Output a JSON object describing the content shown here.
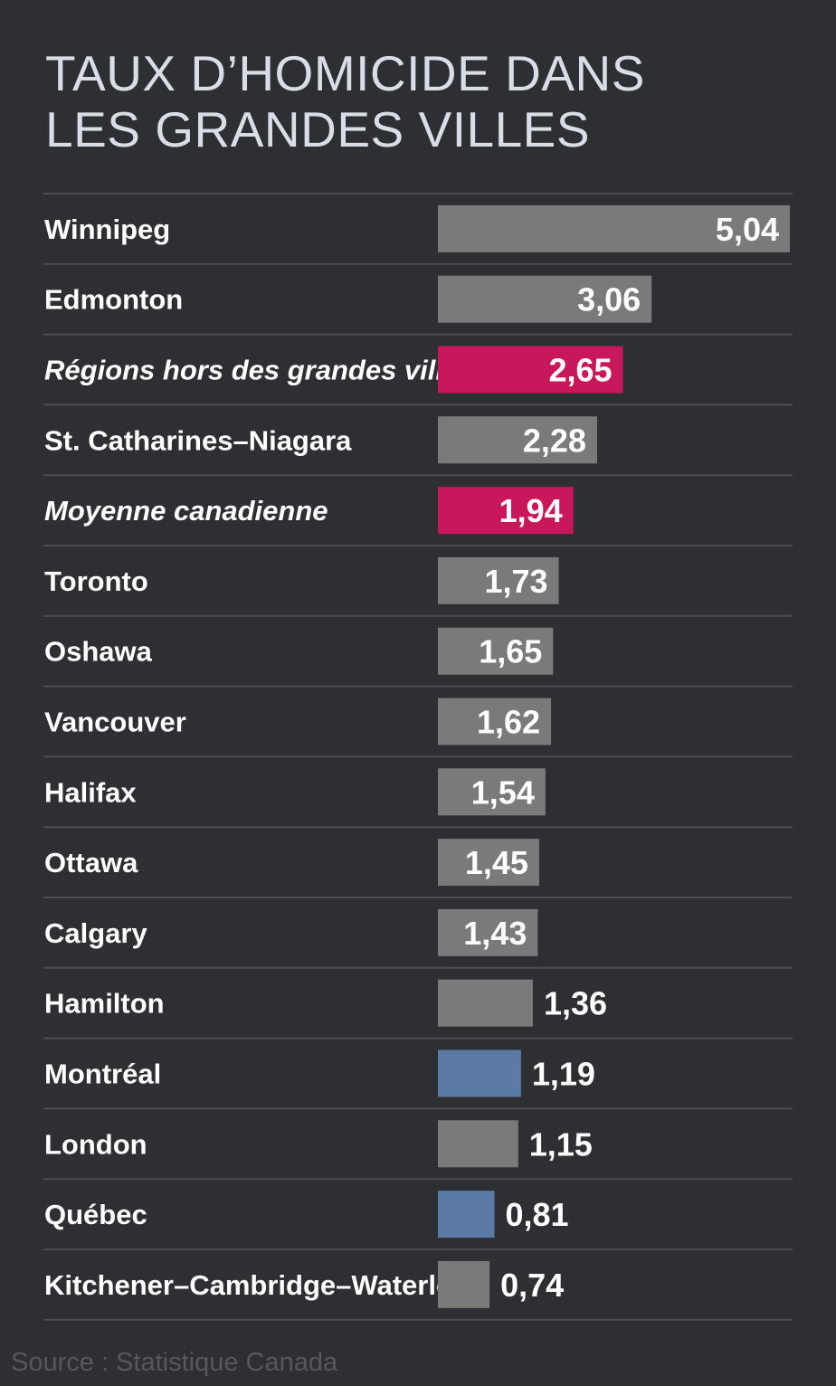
{
  "title_lines": [
    "TAUX D’HOMICIDE DANS",
    "LES GRANDES VILLES"
  ],
  "source": "Source : Statistique Canada",
  "colors": {
    "background": "#2d2f33",
    "default_bar": "#7a7a7a",
    "highlight_pink": "#c8175a",
    "highlight_blue": "#5b7aa5",
    "divider": "#4a4d52",
    "label_text": "#ffffff"
  },
  "chart_data": {
    "type": "bar",
    "orientation": "horizontal",
    "title": "TAUX D’HOMICIDE DANS LES GRANDES VILLES",
    "categories": [
      "Winnipeg",
      "Edmonton",
      "Régions hors des grandes villes",
      "St. Catharines–Niagara",
      "Moyenne canadienne",
      "Toronto",
      "Oshawa",
      "Vancouver",
      "Halifax",
      "Ottawa",
      "Calgary",
      "Hamilton",
      "Montréal",
      "London",
      "Québec",
      "Kitchener–Cambridge–Waterloo"
    ],
    "values": [
      5.04,
      3.06,
      2.65,
      2.28,
      1.94,
      1.73,
      1.65,
      1.62,
      1.54,
      1.45,
      1.43,
      1.36,
      1.19,
      1.15,
      0.81,
      0.74
    ],
    "value_labels": [
      "5,04",
      "3,06",
      "2,65",
      "2,28",
      "1,94",
      "1,73",
      "1,65",
      "1,62",
      "1,54",
      "1,45",
      "1,43",
      "1,36",
      "1,19",
      "1,15",
      "0,81",
      "0,74"
    ],
    "highlight": [
      "default",
      "default",
      "pink",
      "default",
      "pink",
      "default",
      "default",
      "default",
      "default",
      "default",
      "default",
      "default",
      "blue",
      "default",
      "blue",
      "default"
    ],
    "italic": [
      false,
      false,
      true,
      false,
      true,
      false,
      false,
      false,
      false,
      false,
      false,
      false,
      false,
      false,
      false,
      false
    ],
    "xlim": [
      0,
      5.04
    ],
    "grid": false,
    "legend": "none"
  }
}
